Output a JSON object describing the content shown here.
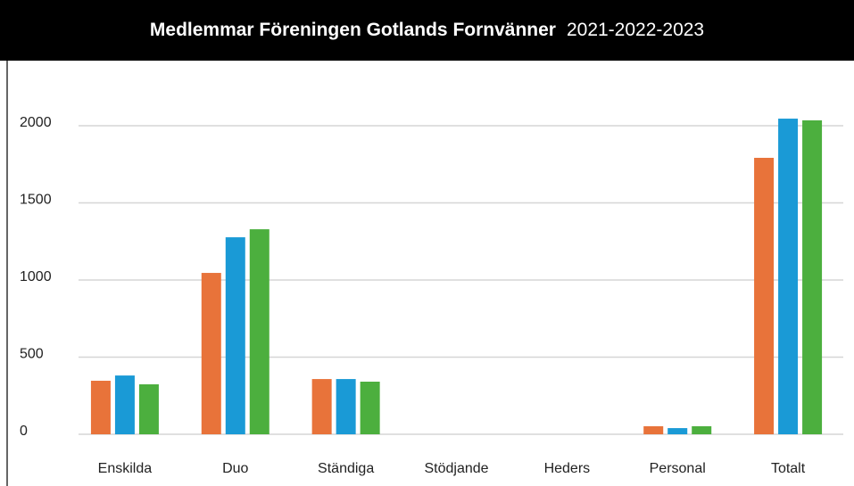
{
  "chart_data": {
    "type": "bar",
    "title": "Medlemmar Föreningen Gotlands Fornvänner",
    "subtitle": "2021-2022-2023",
    "categories": [
      "Enskilda",
      "Duo",
      "Ständiga",
      "Stödjande",
      "Heders",
      "Personal",
      "Totalt"
    ],
    "series": [
      {
        "color": "#e8733a",
        "values": [
          347,
          1046,
          358,
          0,
          0,
          52,
          1792
        ]
      },
      {
        "color": "#1a9ad6",
        "values": [
          381,
          1277,
          358,
          0,
          0,
          40,
          2046
        ]
      },
      {
        "color": "#4caf3e",
        "values": [
          324,
          1329,
          341,
          0,
          0,
          52,
          2035
        ]
      }
    ],
    "ylim": [
      0,
      2400
    ],
    "yticks": [
      0,
      500,
      1000,
      1500,
      2000
    ],
    "grid": true
  }
}
